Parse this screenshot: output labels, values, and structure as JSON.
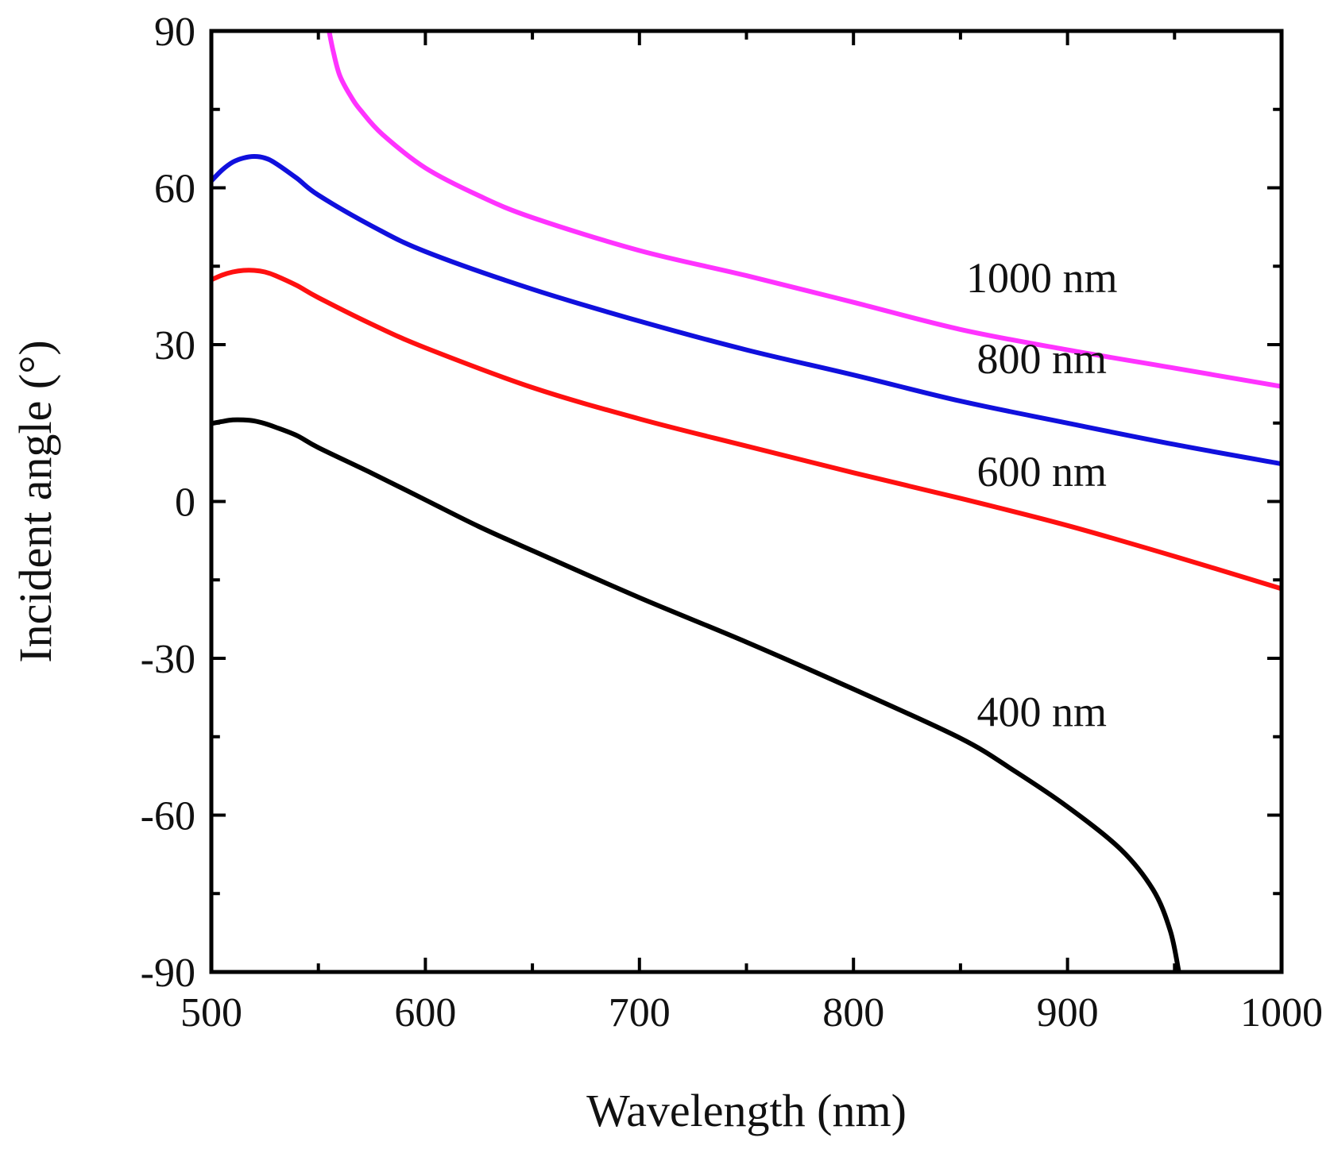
{
  "chart_data": {
    "type": "line",
    "title": "",
    "xlabel": "Wavelength (nm)",
    "ylabel": "Incident angle (°)",
    "xlim": [
      500,
      1000
    ],
    "ylim": [
      -90,
      90
    ],
    "xticks": [
      500,
      600,
      700,
      800,
      900,
      1000
    ],
    "yticks": [
      -90,
      -60,
      -30,
      0,
      30,
      60,
      90
    ],
    "xtick_labels": [
      "500",
      "600",
      "700",
      "800",
      "900",
      "1000"
    ],
    "ytick_labels": [
      "-90",
      "-60",
      "-30",
      "0",
      "30",
      "60",
      "90"
    ],
    "grid": false,
    "series": [
      {
        "name": "1000 nm",
        "color": "#ff33ff",
        "label_at": [
          888,
          40
        ],
        "x": [
          555,
          557,
          560,
          565,
          570,
          580,
          600,
          625,
          650,
          700,
          750,
          800,
          850,
          900,
          950,
          1000
        ],
        "y": [
          90,
          86,
          81.5,
          77.6,
          74.7,
          70.2,
          63.8,
          58.5,
          54.3,
          48.0,
          43.2,
          38.1,
          32.9,
          29.0,
          25.5,
          22.0
        ]
      },
      {
        "name": "800 nm",
        "color": "#1010dd",
        "label_at": [
          888,
          24.5
        ],
        "x": [
          500,
          505,
          510,
          515,
          520,
          525,
          530,
          540,
          550,
          575,
          600,
          650,
          700,
          750,
          800,
          850,
          900,
          950,
          1000
        ],
        "y": [
          61.3,
          63.4,
          64.9,
          65.7,
          66.0,
          65.7,
          64.7,
          61.8,
          58.6,
          52.7,
          47.8,
          40.6,
          34.5,
          29.0,
          24.2,
          19.2,
          15.0,
          10.9,
          7.2
        ]
      },
      {
        "name": "600 nm",
        "color": "#ff1010",
        "label_at": [
          888,
          3
        ],
        "x": [
          500,
          505,
          510,
          515,
          520,
          525,
          530,
          540,
          550,
          575,
          600,
          650,
          700,
          750,
          800,
          850,
          900,
          950,
          1000
        ],
        "y": [
          42.4,
          43.3,
          43.9,
          44.2,
          44.2,
          43.9,
          43.2,
          41.3,
          39.0,
          33.9,
          29.4,
          21.8,
          15.8,
          10.6,
          5.5,
          0.6,
          -4.6,
          -10.5,
          -16.7
        ]
      },
      {
        "name": "400 nm",
        "color": "#000000",
        "label_at": [
          888,
          -43
        ],
        "x": [
          500,
          505,
          510,
          515,
          520,
          525,
          530,
          540,
          550,
          575,
          600,
          625,
          650,
          700,
          750,
          800,
          850,
          875,
          900,
          925,
          940,
          948,
          952
        ],
        "y": [
          14.9,
          15.3,
          15.6,
          15.6,
          15.4,
          14.9,
          14.2,
          12.6,
          10.3,
          5.4,
          0.3,
          -4.8,
          -9.4,
          -18.4,
          -26.9,
          -35.9,
          -45.3,
          -51.5,
          -58.4,
          -66.6,
          -74.3,
          -82.1,
          -90
        ]
      }
    ]
  }
}
